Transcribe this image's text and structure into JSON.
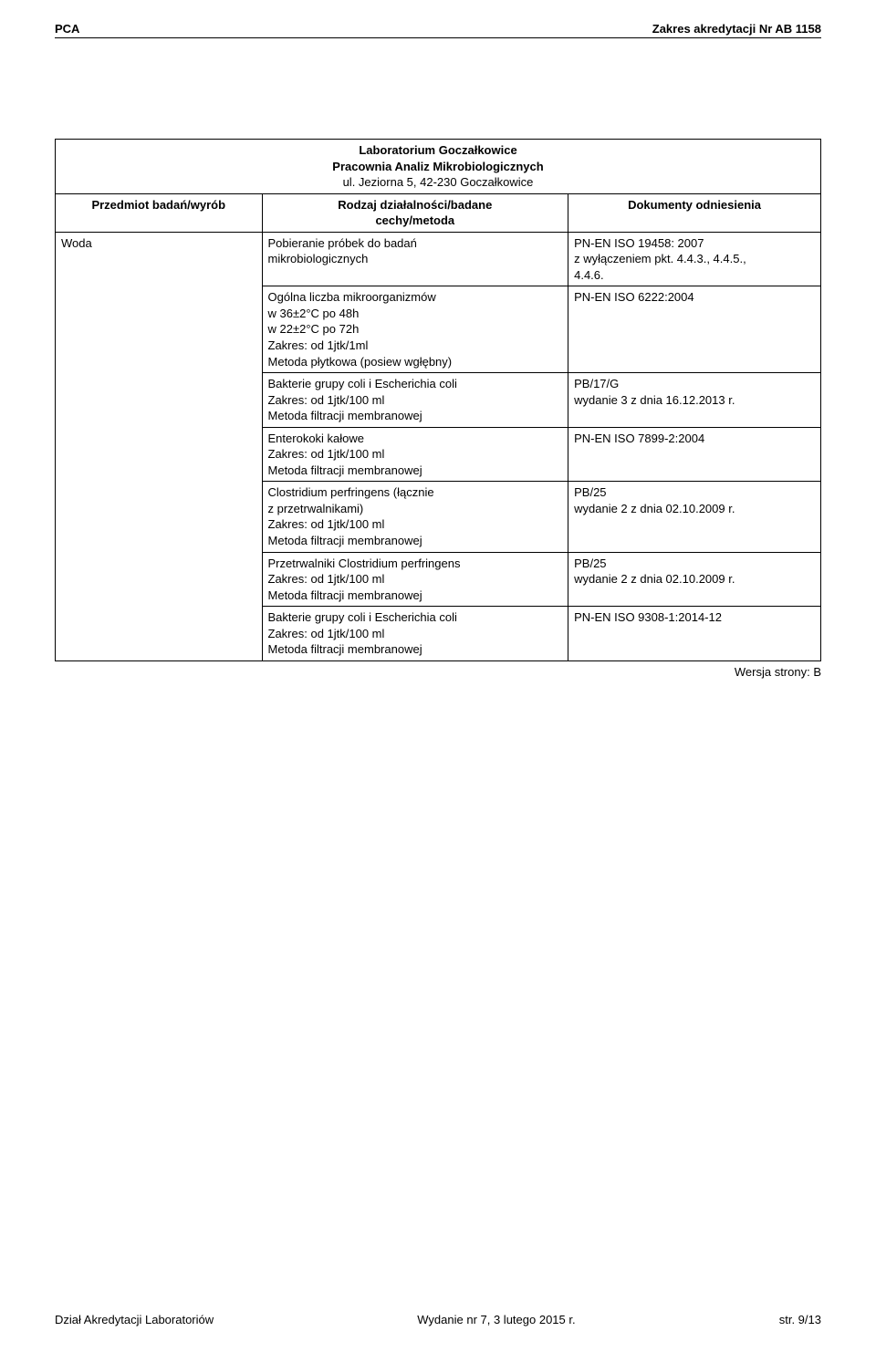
{
  "header": {
    "left": "PCA",
    "right": "Zakres akredytacji Nr AB 1158"
  },
  "lab": {
    "line1": "Laboratorium Goczałkowice",
    "line2": "Pracownia Analiz Mikrobiologicznych",
    "addr": "ul. Jeziorna 5, 42-230 Goczałkowice"
  },
  "columns": {
    "c1": "Przedmiot badań/wyrób",
    "c2a": "Rodzaj działalności/badane",
    "c2b": "cechy/metoda",
    "c3": "Dokumenty odniesienia"
  },
  "material": "Woda",
  "rows": [
    {
      "method": "Pobieranie próbek do badań\nmikrobiologicznych",
      "docs": "PN-EN ISO 19458: 2007\n z wyłączeniem pkt. 4.4.3., 4.4.5.,\n4.4.6."
    },
    {
      "method": "Ogólna liczba mikroorganizmów\nw 36±2°C po 48h\nw 22±2°C po 72h\nZakres: od 1jtk/1ml\nMetoda płytkowa (posiew wgłębny)",
      "docs": "PN-EN ISO 6222:2004"
    },
    {
      "method": "Bakterie grupy coli i Escherichia coli\nZakres: od 1jtk/100 ml\nMetoda filtracji membranowej",
      "docs": "PB/17/G\nwydanie 3 z dnia 16.12.2013 r."
    },
    {
      "method": "Enterokoki kałowe\nZakres: od 1jtk/100 ml\nMetoda filtracji membranowej",
      "docs": "PN-EN ISO 7899-2:2004"
    },
    {
      "method": "Clostridium perfringens (łącznie\nz przetrwalnikami)\nZakres: od 1jtk/100 ml\nMetoda filtracji membranowej",
      "docs": "PB/25\nwydanie 2 z dnia 02.10.2009 r."
    },
    {
      "method": "Przetrwalniki Clostridium perfringens\nZakres: od 1jtk/100 ml\nMetoda filtracji membranowej",
      "docs": "PB/25\nwydanie 2 z dnia 02.10.2009 r."
    },
    {
      "method": "Bakterie grupy coli i Escherichia coli\nZakres: od 1jtk/100 ml\nMetoda filtracji membranowej",
      "docs": "PN-EN ISO 9308-1:2014-12"
    }
  ],
  "version": "Wersja strony: B",
  "footer": {
    "left": "Dział Akredytacji Laboratoriów",
    "center": "Wydanie nr 7, 3 lutego 2015 r.",
    "right": "str. 9/13"
  },
  "layout": {
    "col1_width": "27%",
    "col2_width": "40%",
    "col3_width": "33%"
  }
}
